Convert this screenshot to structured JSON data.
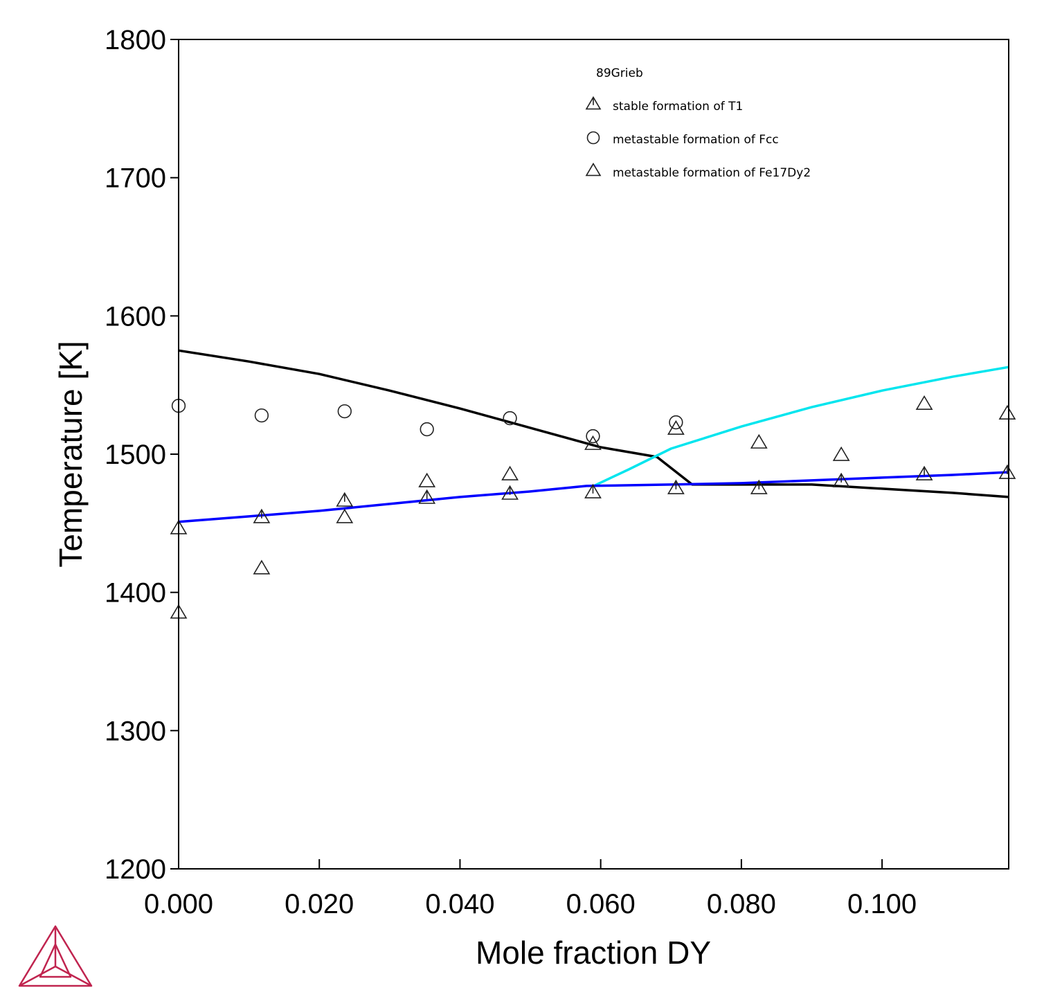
{
  "chart_data": {
    "type": "line",
    "xlabel": "Mole fraction DY",
    "ylabel": "Temperature [K]",
    "xlim": [
      0.0,
      0.118
    ],
    "ylim": [
      1200,
      1800
    ],
    "x_ticks": [
      {
        "value": 0.0,
        "label": "0.000"
      },
      {
        "value": 0.02,
        "label": "0.020"
      },
      {
        "value": 0.04,
        "label": "0.040"
      },
      {
        "value": 0.06,
        "label": "0.060"
      },
      {
        "value": 0.08,
        "label": "0.080"
      },
      {
        "value": 0.1,
        "label": "0.100"
      }
    ],
    "y_ticks": [
      {
        "value": 1200,
        "label": "1200"
      },
      {
        "value": 1300,
        "label": "1300"
      },
      {
        "value": 1400,
        "label": "1400"
      },
      {
        "value": 1500,
        "label": "1500"
      },
      {
        "value": 1600,
        "label": "1600"
      },
      {
        "value": 1700,
        "label": "1700"
      },
      {
        "value": 1800,
        "label": "1800"
      }
    ],
    "grid": false,
    "legend": {
      "title": "89Grieb",
      "position": "top-center",
      "entries": [
        {
          "label": "stable formation of T1",
          "marker": "triangle-tick"
        },
        {
          "label": "metastable formation of Fcc",
          "marker": "circle"
        },
        {
          "label": "metastable formation of Fe17Dy2",
          "marker": "triangle"
        }
      ]
    },
    "lines": [
      {
        "color": "#000000",
        "points": [
          [
            0.0,
            1575
          ],
          [
            0.01,
            1567
          ],
          [
            0.02,
            1558
          ],
          [
            0.03,
            1546
          ],
          [
            0.04,
            1533
          ],
          [
            0.05,
            1519
          ],
          [
            0.06,
            1505
          ],
          [
            0.068,
            1498
          ],
          [
            0.073,
            1478
          ],
          [
            0.08,
            1478
          ],
          [
            0.09,
            1478
          ],
          [
            0.1,
            1475
          ],
          [
            0.11,
            1472
          ],
          [
            0.118,
            1469
          ]
        ]
      },
      {
        "color": "#00e5ee",
        "points": [
          [
            0.059,
            1477
          ],
          [
            0.064,
            1489
          ],
          [
            0.07,
            1504
          ],
          [
            0.08,
            1520
          ],
          [
            0.09,
            1534
          ],
          [
            0.1,
            1546
          ],
          [
            0.11,
            1556
          ],
          [
            0.118,
            1563
          ]
        ]
      },
      {
        "color": "#0000ff",
        "points": [
          [
            0.0,
            1451
          ],
          [
            0.01,
            1455
          ],
          [
            0.02,
            1459
          ],
          [
            0.03,
            1464
          ],
          [
            0.04,
            1469
          ],
          [
            0.05,
            1473
          ],
          [
            0.058,
            1477
          ],
          [
            0.07,
            1478
          ],
          [
            0.08,
            1479
          ],
          [
            0.09,
            1481
          ],
          [
            0.1,
            1483
          ],
          [
            0.11,
            1485
          ],
          [
            0.118,
            1487
          ]
        ]
      }
    ],
    "series": [
      {
        "marker": "triangle-tick",
        "points": [
          [
            0.0,
            1446
          ],
          [
            0.0118,
            1454
          ],
          [
            0.0236,
            1466
          ],
          [
            0.0353,
            1468
          ],
          [
            0.0471,
            1471
          ],
          [
            0.0589,
            1472
          ],
          [
            0.0707,
            1475
          ],
          [
            0.0825,
            1475
          ],
          [
            0.0942,
            1480
          ],
          [
            0.106,
            1485
          ],
          [
            0.1178,
            1486
          ]
        ]
      },
      {
        "marker": "circle",
        "points": [
          [
            0.0,
            1535
          ],
          [
            0.0118,
            1528
          ],
          [
            0.0236,
            1531
          ],
          [
            0.0353,
            1518
          ],
          [
            0.0471,
            1526
          ],
          [
            0.0589,
            1513
          ],
          [
            0.0707,
            1523
          ]
        ]
      },
      {
        "marker": "triangle",
        "points": [
          [
            0.0,
            1385
          ],
          [
            0.0118,
            1417
          ],
          [
            0.0236,
            1454
          ],
          [
            0.0353,
            1480
          ],
          [
            0.0471,
            1485
          ],
          [
            0.0589,
            1507
          ],
          [
            0.0707,
            1518
          ],
          [
            0.0825,
            1508
          ],
          [
            0.0942,
            1499
          ],
          [
            0.106,
            1536
          ],
          [
            0.1178,
            1529
          ]
        ]
      }
    ]
  }
}
